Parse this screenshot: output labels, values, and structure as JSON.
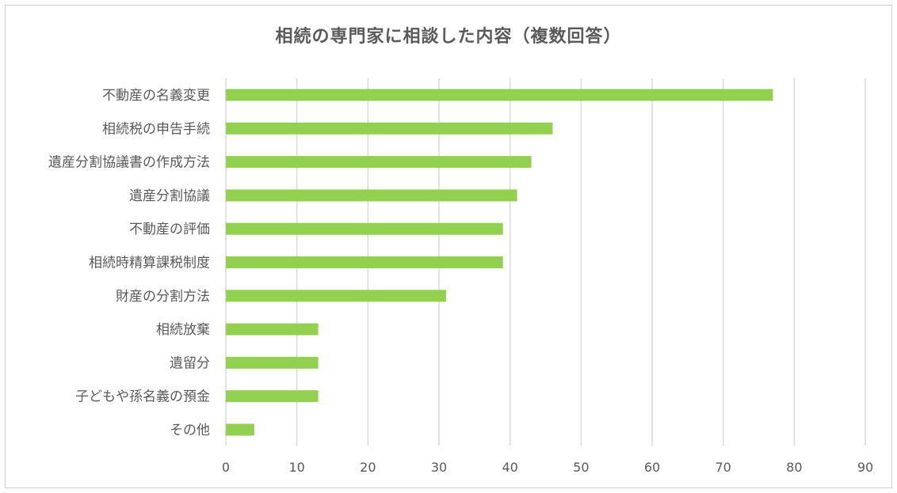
{
  "chart_data": {
    "type": "bar",
    "orientation": "horizontal",
    "title": "相続の専門家に相談した内容（複数回答）",
    "categories": [
      "不動産の名義変更",
      "相続税の申告手続",
      "遺産分割協議書の作成方法",
      "遺産分割協議",
      "不動産の評価",
      "相続時精算課税制度",
      "財産の分割方法",
      "相続放棄",
      "遺留分",
      "子どもや孫名義の預金",
      "その他"
    ],
    "values": [
      77,
      46,
      43,
      41,
      39,
      39,
      31,
      13,
      13,
      13,
      4
    ],
    "xlim": [
      0,
      90
    ],
    "xticks": [
      0,
      10,
      20,
      30,
      40,
      50,
      60,
      70,
      80,
      90
    ],
    "xlabel": "",
    "ylabel": "",
    "grid": "vertical",
    "legend": "none",
    "bar_color": "#92d050",
    "grid_color": "#d9d9d9",
    "text_color": "#595959"
  }
}
